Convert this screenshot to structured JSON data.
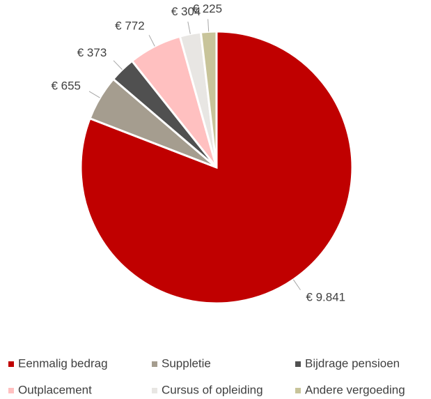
{
  "chart_data": {
    "type": "pie",
    "categories": [
      "Eenmalig bedrag",
      "Suppletie",
      "Bijdrage pensioen",
      "Outplacement",
      "Cursus of opleiding",
      "Andere vergoeding"
    ],
    "values": [
      9841,
      655,
      373,
      772,
      304,
      225
    ],
    "value_labels": [
      "€ 9.841",
      "€ 655",
      "€ 373",
      "€ 772",
      "€ 304",
      "€ 225"
    ],
    "colors": [
      "#c00000",
      "#a59d8f",
      "#505050",
      "#ffc0c0",
      "#e8e6e3",
      "#c8c49a"
    ],
    "legend": "bottom"
  }
}
